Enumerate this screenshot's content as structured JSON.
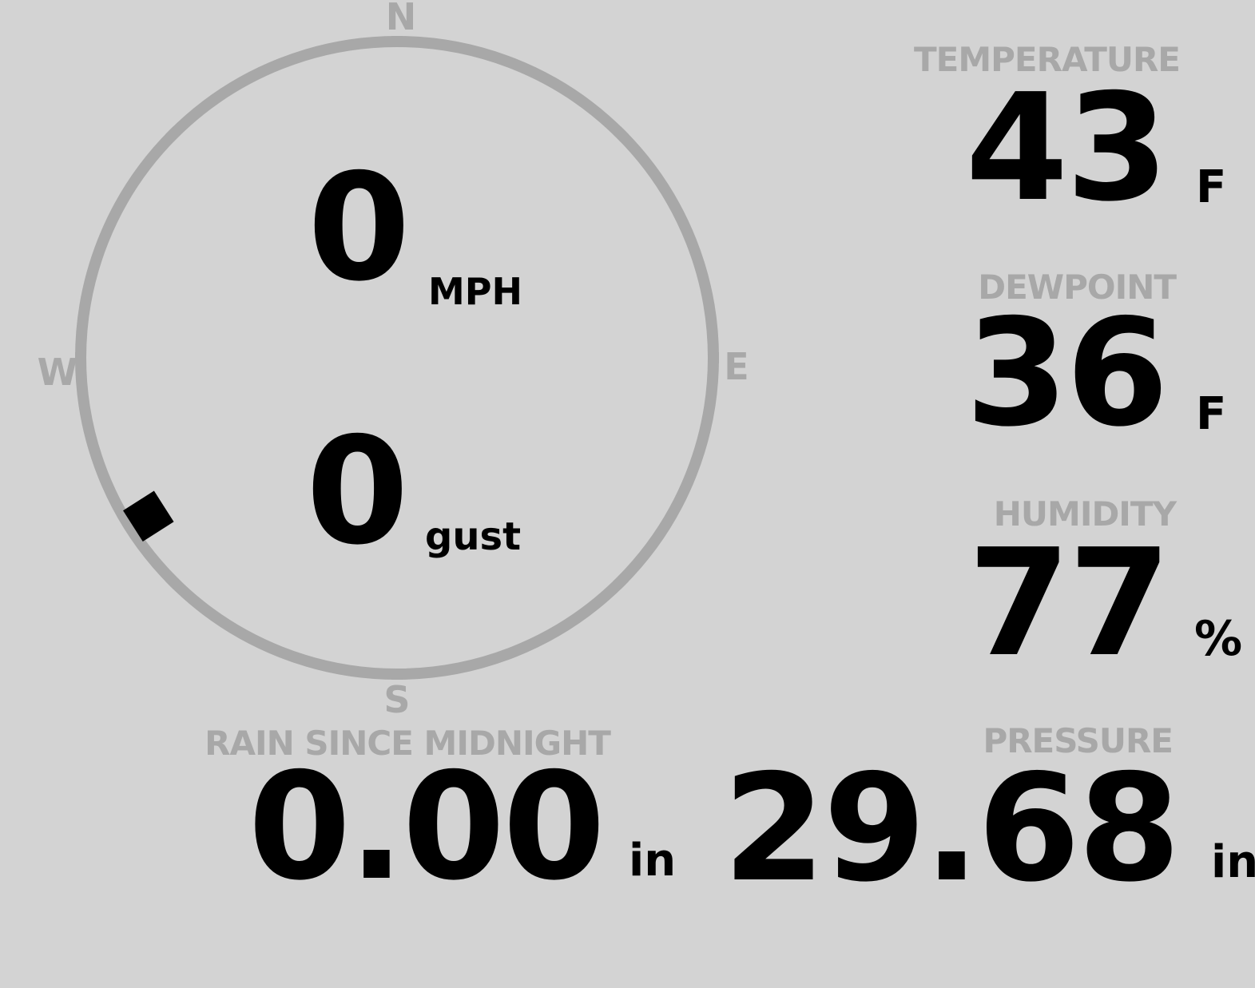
{
  "colors": {
    "background": "#d3d3d3",
    "muted_gray": "#a8a8a8",
    "text_black": "#000000"
  },
  "compass": {
    "labels": {
      "north": "N",
      "east": "E",
      "south": "S",
      "west": "W"
    },
    "wind": {
      "speed": "0",
      "speed_unit": "MPH",
      "gust": "0",
      "gust_unit": "gust",
      "direction_deg": 237.5
    }
  },
  "metrics": {
    "temperature": {
      "label": "TEMPERATURE",
      "value": "43",
      "unit": "F"
    },
    "dewpoint": {
      "label": "DEWPOINT",
      "value": "36",
      "unit": "F"
    },
    "humidity": {
      "label": "HUMIDITY",
      "value": "77",
      "unit": "%"
    },
    "rain": {
      "label": "RAIN SINCE MIDNIGHT",
      "value": "0.00",
      "unit": "in"
    },
    "pressure": {
      "label": "PRESSURE",
      "value": "29.68",
      "unit": "in"
    }
  }
}
